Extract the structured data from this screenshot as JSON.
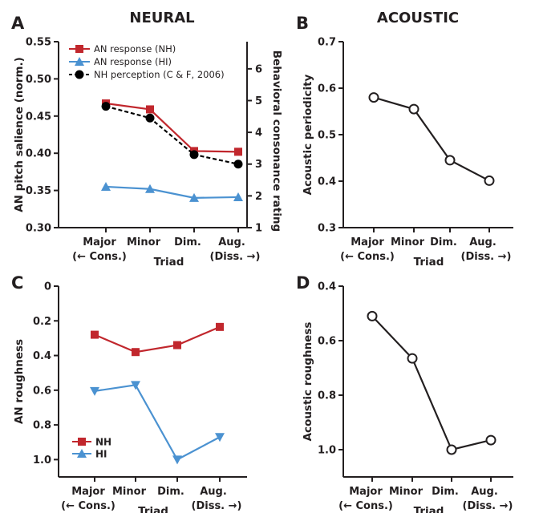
{
  "headings": {
    "neural": "NEURAL",
    "acoustic": "ACOUSTIC"
  },
  "colors": {
    "nh": "#c1272d",
    "hi": "#4b92d1",
    "perception": "#000000",
    "ink": "#231f20"
  },
  "chart_data": [
    {
      "panel": "A",
      "type": "line",
      "categories": [
        "Major",
        "Minor",
        "Dim.",
        "Aug."
      ],
      "x_extremes": [
        "(← Cons.)",
        "(Diss. →)"
      ],
      "xlabel": "Triad",
      "ylabel": "AN pitch salience (norm.)",
      "ylim": [
        0.3,
        0.55
      ],
      "yticks": [
        "0.30",
        "0.35",
        "0.40",
        "0.45",
        "0.50",
        "0.55"
      ],
      "y2label": "Behavioral consonance rating",
      "y2lim": [
        1,
        6.4
      ],
      "y2ticks": [
        "1",
        "2",
        "3",
        "4",
        "5",
        "6"
      ],
      "legend_position": "top-left",
      "series": [
        {
          "name": "AN response (NH)",
          "axis": "left",
          "marker": "square",
          "color": "#c1272d",
          "values": [
            0.467,
            0.459,
            0.403,
            0.402
          ]
        },
        {
          "name": "AN response (HI)",
          "axis": "left",
          "marker": "triangle-up",
          "color": "#4b92d1",
          "values": [
            0.355,
            0.352,
            0.34,
            0.341
          ]
        },
        {
          "name": "NH perception (C & F, 2006)",
          "axis": "right",
          "marker": "circle",
          "dashed": true,
          "color": "#000000",
          "values": [
            4.82,
            4.45,
            3.3,
            3.0
          ]
        }
      ]
    },
    {
      "panel": "B",
      "type": "line",
      "categories": [
        "Major",
        "Minor",
        "Dim.",
        "Aug."
      ],
      "x_extremes": [
        "(← Cons.)",
        "(Diss. →)"
      ],
      "xlabel": "Triad",
      "ylabel": "Acoustic periodicity",
      "ylim": [
        0.3,
        0.7
      ],
      "yticks": [
        "0.3",
        "0.4",
        "0.5",
        "0.6",
        "0.7"
      ],
      "series": [
        {
          "marker": "open-circle",
          "color": "#231f20",
          "values": [
            0.58,
            0.555,
            0.445,
            0.401
          ]
        }
      ]
    },
    {
      "panel": "C",
      "type": "line",
      "categories": [
        "Major",
        "Minor",
        "Dim.",
        "Aug."
      ],
      "x_extremes": [
        "(← Cons.)",
        "(Diss. →)"
      ],
      "xlabel": "Triad",
      "ylabel": "AN roughness",
      "ylim": [
        1.1,
        0.0
      ],
      "y_inverted": true,
      "yticks": [
        "0",
        "0.2",
        "0.4",
        "0.6",
        "0.8",
        "1.0"
      ],
      "legend_position": "bottom-left",
      "series": [
        {
          "name": "NH",
          "marker": "square",
          "color": "#c1272d",
          "values": [
            0.28,
            0.38,
            0.34,
            0.235
          ]
        },
        {
          "name": "HI",
          "marker": "triangle-down",
          "color": "#4b92d1",
          "values": [
            0.605,
            0.57,
            1.0,
            0.87
          ]
        }
      ]
    },
    {
      "panel": "D",
      "type": "line",
      "categories": [
        "Major",
        "Minor",
        "Dim.",
        "Aug."
      ],
      "x_extremes": [
        "(← Cons.)",
        "(Diss. →)"
      ],
      "xlabel": "Triad",
      "ylabel": "Acoustic roughness",
      "ylim": [
        1.1,
        0.4
      ],
      "y_inverted": true,
      "yticks": [
        "0.4",
        "0.6",
        "0.8",
        "1.0"
      ],
      "series": [
        {
          "marker": "open-circle",
          "color": "#231f20",
          "values": [
            0.51,
            0.665,
            1.0,
            0.965
          ]
        }
      ]
    }
  ]
}
